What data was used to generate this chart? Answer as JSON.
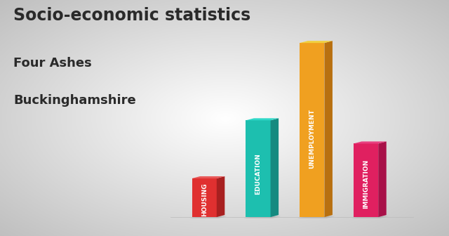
{
  "title_line1": "Socio-economic statistics",
  "title_line2": "Four Ashes",
  "title_line3": "Buckinghamshire",
  "categories": [
    "HOUSING",
    "EDUCATION",
    "UNEMPLOYMENT",
    "IMMIGRATION"
  ],
  "values": [
    0.2,
    0.5,
    0.9,
    0.38
  ],
  "front_colors": [
    "#E03030",
    "#1DBFAF",
    "#F0A020",
    "#E02060"
  ],
  "side_colors": [
    "#A82020",
    "#158A80",
    "#B87010",
    "#A81048"
  ],
  "top_colors": [
    "#E85858",
    "#30D8C8",
    "#F0D040",
    "#E84080"
  ],
  "label_color": "#FFFFFF",
  "title_color": "#2A2A2A",
  "bar_width": 0.055,
  "bar_depth": 0.018,
  "xlim": [
    0.3,
    1.0
  ],
  "ylim": [
    -0.05,
    1.0
  ]
}
